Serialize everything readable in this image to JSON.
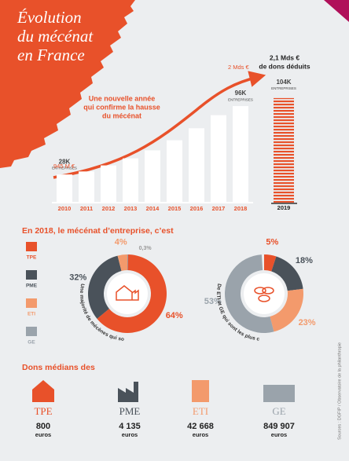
{
  "title_lines": [
    "Évolution",
    "du mécénat",
    "en France"
  ],
  "chart_data": [
    {
      "type": "bar",
      "categories": [
        "2010",
        "2011",
        "2012",
        "2013",
        "2014",
        "2015",
        "2016",
        "2017",
        "2018",
        "2019"
      ],
      "values": [
        28,
        31,
        37,
        44,
        52,
        62,
        74,
        87,
        96,
        104
      ],
      "value_labels": [
        "28K",
        null,
        null,
        null,
        null,
        null,
        null,
        null,
        "96K",
        "104K"
      ],
      "unit_label": "ENTREPRISES",
      "color": "#ffffff",
      "highlight_color": "#e8512a",
      "note_lines": [
        "Une nouvelle année",
        "qui confirme la hausse",
        "du mécénat"
      ],
      "start_amount": "945 M €",
      "end_amount": "2 Mds €",
      "total_lines": [
        "2,1 Mds €",
        "de dons déduits"
      ]
    },
    {
      "type": "donut",
      "title": "En 2018, le mécénat d’entreprise, c’est",
      "caption": "Une majorité de mécènes qui sont des TPE et PME",
      "categories": [
        "TPE",
        "PME",
        "ETI",
        "GE"
      ],
      "values": [
        64,
        32,
        4,
        0.3
      ],
      "value_labels": [
        "64%",
        "32%",
        "4%",
        "0,3%"
      ],
      "colors": [
        "#e8512a",
        "#4a525a",
        "#f39a6c",
        "#9aa3ab"
      ]
    },
    {
      "type": "donut",
      "caption": "De ETI et GE qui sont les plus contributeurs au budget du mécénat",
      "categories": [
        "TPE",
        "PME",
        "ETI",
        "GE"
      ],
      "values": [
        5,
        18,
        23,
        53
      ],
      "value_labels": [
        "5%",
        "18%",
        "23%",
        "53%"
      ],
      "colors": [
        "#e8512a",
        "#4a525a",
        "#f39a6c",
        "#9aa3ab"
      ]
    }
  ],
  "medians": {
    "title": "Dons médians des",
    "items": [
      {
        "label": "TPE",
        "amount": "800",
        "unit": "euros"
      },
      {
        "label": "PME",
        "amount": "4 135",
        "unit": "euros"
      },
      {
        "label": "ETI",
        "amount": "42 668",
        "unit": "euros"
      },
      {
        "label": "GE",
        "amount": "849 907",
        "unit": "euros"
      }
    ]
  },
  "source": "Sources : DGFIP / Observatoire de la philanthropie"
}
